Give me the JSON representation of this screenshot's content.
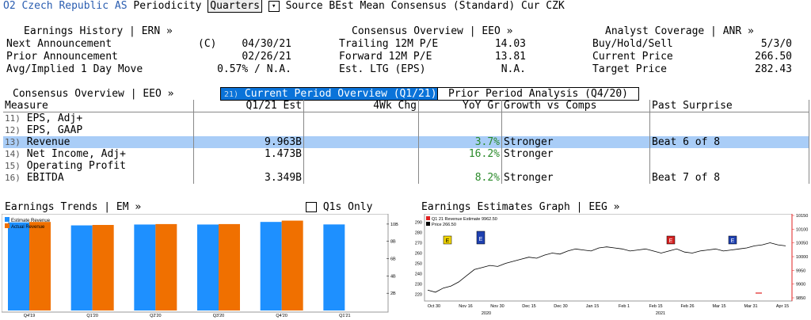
{
  "header": {
    "company": "O2 Czech Republic AS",
    "periodicity_label": "Periodicity",
    "periodicity_value": "Quarters",
    "source_text": "Source BEst Mean Consensus (Standard) Cur CZK"
  },
  "earnings_history": {
    "title": "Earnings History | ERN »",
    "rows": [
      {
        "label": "Next Announcement",
        "flag": "(C)",
        "value": "04/30/21"
      },
      {
        "label": "Prior Announcement",
        "flag": "",
        "value": "02/26/21"
      },
      {
        "label": "Avg/Implied 1 Day Move",
        "flag": "",
        "value": "0.57% / N.A."
      }
    ]
  },
  "consensus_box": {
    "title": "Consensus Overview | EEO »",
    "rows": [
      {
        "label": "Trailing 12M P/E",
        "value": "14.03"
      },
      {
        "label": "Forward 12M P/E",
        "value": "13.81"
      },
      {
        "label": "Est. LTG (EPS)",
        "value": "N.A."
      }
    ]
  },
  "analyst": {
    "title": "Analyst Coverage | ANR »",
    "rows": [
      {
        "label": "Buy/Hold/Sell",
        "value": "5/3/0"
      },
      {
        "label": "Current Price",
        "value": "266.50"
      },
      {
        "label": "Target Price",
        "value": "282.43"
      }
    ]
  },
  "tabs": {
    "section_title": "Consensus Overview | EEO »",
    "active_num": "21)",
    "active": "Current Period Overview (Q1/21)",
    "inactive": "Prior Period Analysis (Q4/20)"
  },
  "table": {
    "headers": [
      "Measure",
      "Q1/21 Est",
      "4Wk Chg",
      "YoY Gr",
      "Growth vs Comps",
      "Past Surprise"
    ],
    "rows": [
      {
        "num": "11)",
        "measure": "EPS, Adj+",
        "est": "",
        "chg": "",
        "yoy": "",
        "growth": "",
        "surprise": ""
      },
      {
        "num": "12)",
        "measure": "EPS, GAAP",
        "est": "",
        "chg": "",
        "yoy": "",
        "growth": "",
        "surprise": ""
      },
      {
        "num": "13)",
        "measure": "Revenue",
        "est": "9.963B",
        "chg": "",
        "yoy": "3.7%",
        "growth": "Stronger",
        "surprise": "Beat 6 of 8"
      },
      {
        "num": "14)",
        "measure": "Net Income, Adj+",
        "est": "1.473B",
        "chg": "",
        "yoy": "16.2%",
        "growth": "Stronger",
        "surprise": ""
      },
      {
        "num": "15)",
        "measure": "Operating Profit",
        "est": "",
        "chg": "",
        "yoy": "",
        "growth": "",
        "surprise": ""
      },
      {
        "num": "16)",
        "measure": "EBITDA",
        "est": "3.349B",
        "chg": "",
        "yoy": "8.2%",
        "growth": "Stronger",
        "surprise": "Beat 7 of 8"
      }
    ]
  },
  "trends": {
    "title": "Earnings Trends | EM »",
    "checkbox_label": "Q1s Only",
    "legend": [
      "Estimate Revenue",
      "Actual Revenue"
    ],
    "colors": {
      "estimate": "#1e90ff",
      "actual": "#f07000"
    }
  },
  "graph": {
    "title": "Earnings Estimates Graph | EEG »",
    "legend": [
      "Q1 21 Revenue Estimate 9962.50",
      "Price 266.50"
    ],
    "markers": [
      "E",
      "E",
      "E",
      "E"
    ],
    "colors": {
      "price": "#000000",
      "estimate": "#e02020",
      "marker_yellow": "#f2d600",
      "marker_blue": "#1e40b0"
    }
  },
  "chart_data": [
    {
      "type": "bar",
      "title": "Earnings Trends",
      "categories": [
        "Q4'19",
        "Q1'20",
        "Q2'20",
        "Q3'20",
        "Q4'20",
        "Q1'21"
      ],
      "series": [
        {
          "name": "Estimate Revenue",
          "values": [
            10.2,
            9.85,
            9.95,
            9.95,
            10.25,
            9.96
          ]
        },
        {
          "name": "Actual Revenue",
          "values": [
            10.25,
            9.9,
            10.0,
            10.0,
            10.4,
            null
          ]
        }
      ],
      "y_ticks": [
        "2B",
        "4B",
        "6B",
        "8B",
        "10B"
      ],
      "ylim": [
        0,
        11
      ]
    },
    {
      "type": "line",
      "title": "Earnings Estimates Graph",
      "x_ticks": [
        "Oct 30",
        "Nov 16",
        "Nov 30",
        "Dec 15",
        "Dec 30",
        "Jan 15",
        "Feb 1",
        "Feb 15",
        "Feb 26",
        "Mar 15",
        "Mar 31",
        "Apr 15"
      ],
      "year_labels": [
        "2020",
        "2021"
      ],
      "y_left_ticks": [
        "220",
        "230",
        "240",
        "250",
        "260",
        "270",
        "280",
        "290"
      ],
      "y_right_ticks": [
        "9850",
        "9900",
        "9950",
        "10000",
        "10050",
        "10100",
        "10150"
      ],
      "price_ylim": [
        215,
        295
      ],
      "series": [
        {
          "name": "Price",
          "values": [
            224,
            222,
            226,
            228,
            232,
            238,
            244,
            246,
            248,
            247,
            250,
            252,
            254,
            256,
            255,
            258,
            260,
            259,
            262,
            264,
            263,
            262,
            265,
            266,
            265,
            264,
            262,
            263,
            264,
            262,
            260,
            262,
            264,
            261,
            260,
            262,
            263,
            264,
            262,
            263,
            264,
            265,
            267,
            268,
            270,
            268,
            267
          ]
        }
      ]
    }
  ]
}
